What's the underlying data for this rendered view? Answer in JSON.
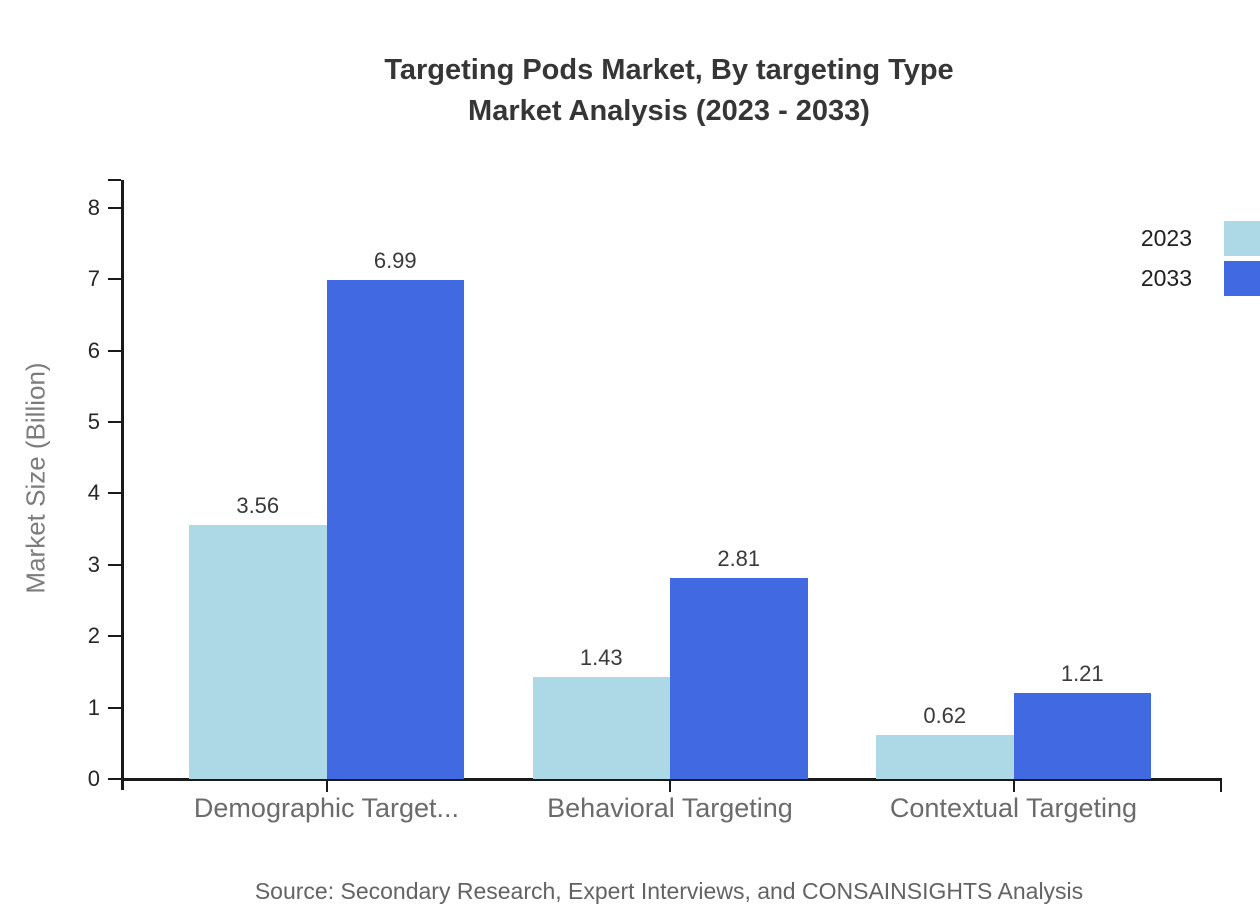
{
  "chart_data": {
    "type": "bar",
    "title": "Targeting Pods Market, By targeting Type",
    "subtitle": "Market Analysis (2023 - 2033)",
    "ylabel": "Market Size (Billion)",
    "xlabel": "",
    "categories": [
      "Demographic Target...",
      "Behavioral Targeting",
      "Contextual Targeting"
    ],
    "series": [
      {
        "name": "2023",
        "color": "#ADD8E6",
        "values": [
          3.56,
          1.43,
          0.62
        ]
      },
      {
        "name": "2033",
        "color": "#4169E1",
        "values": [
          6.99,
          2.81,
          1.21
        ]
      }
    ],
    "value_labels": [
      [
        "3.56",
        "1.43",
        "0.62"
      ],
      [
        "6.99",
        "2.81",
        "1.21"
      ]
    ],
    "yticks": [
      0,
      1,
      2,
      3,
      4,
      5,
      6,
      7,
      8
    ],
    "ylim": [
      0,
      8.4
    ],
    "grid": false,
    "legend_position": "top-right",
    "bar_value_labels_shown": true
  },
  "footer": {
    "source": "Source: Secondary Research, Expert Interviews, and CONSAINSIGHTS Analysis"
  },
  "colors": {
    "axis": "#1a1a1a",
    "title_text": "#363636",
    "category_text": "#6b6b6b",
    "axis_title_text": "#7c7c7c",
    "source_text": "#636363",
    "series_2023": "#ADD8E6",
    "series_2033": "#4169E1"
  }
}
